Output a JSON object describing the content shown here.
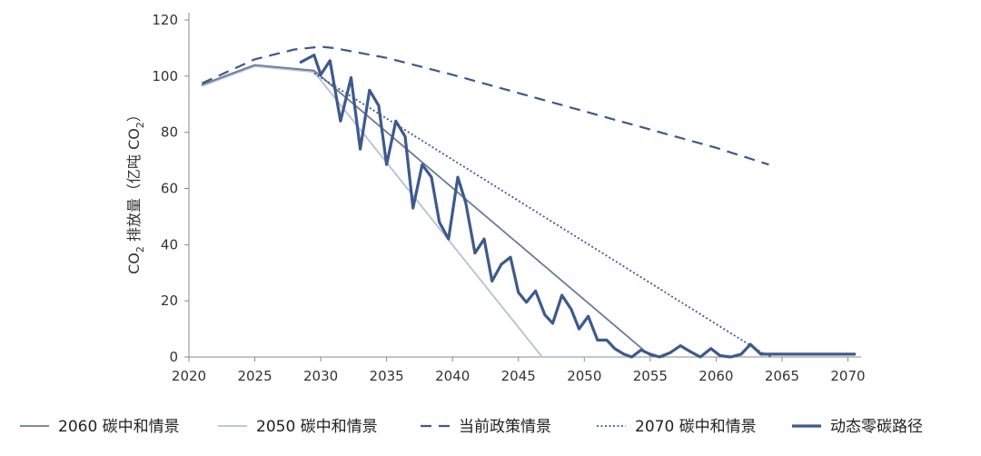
{
  "chart_data": {
    "type": "line",
    "ylabel": {
      "prefix": "CO",
      "prefix_sub": "2",
      "mid": " 排放量（亿吨 CO",
      "mid_sub": "2",
      "suffix": "）"
    },
    "xlim": [
      2020,
      2071
    ],
    "ylim": [
      0,
      120
    ],
    "xticks": [
      2020,
      2025,
      2030,
      2035,
      2040,
      2045,
      2050,
      2055,
      2060,
      2065,
      2070
    ],
    "yticks": [
      0,
      20,
      40,
      60,
      80,
      100,
      120
    ],
    "grid": false,
    "legend_position": "bottom",
    "series": [
      {
        "name": "2060 碳中和情景",
        "color": "#6b7a99",
        "style": "solid",
        "x": [
          2021,
          2025,
          2029.5,
          2055,
          2056
        ],
        "y": [
          97,
          104,
          102,
          0.5,
          0
        ]
      },
      {
        "name": "2050 碳中和情景",
        "color": "#b8bfd3",
        "style": "solid",
        "x": [
          2021,
          2025,
          2029.5,
          2046.8,
          2055
        ],
        "y": [
          96.5,
          103.5,
          101.5,
          0,
          0
        ]
      },
      {
        "name": "当前政策情景",
        "color": "#3d5a8c",
        "style": "dashed",
        "x": [
          2021,
          2025,
          2028,
          2030,
          2031,
          2035,
          2040,
          2045,
          2050,
          2055,
          2060,
          2064
        ],
        "y": [
          97.5,
          106,
          109.5,
          110.5,
          110,
          106.5,
          100.5,
          94,
          87.5,
          81,
          74.5,
          68.5
        ]
      },
      {
        "name": "2070 碳中和情景",
        "color": "#3d5a8c",
        "style": "dotted",
        "x": [
          2029.5,
          2063.5,
          2064.2
        ],
        "y": [
          101,
          1.5,
          0
        ]
      },
      {
        "name": "动态零碳路径",
        "color": "#3d5a8c",
        "style": "solid-thick",
        "x": [
          2028.5,
          2029.5,
          2030,
          2030.7,
          2031.5,
          2032.3,
          2033,
          2033.7,
          2034.4,
          2035,
          2035.7,
          2036.4,
          2037,
          2037.7,
          2038.4,
          2039,
          2039.7,
          2040.4,
          2041,
          2041.7,
          2042.4,
          2043,
          2043.7,
          2044.4,
          2045,
          2045.6,
          2046.3,
          2047,
          2047.6,
          2048.3,
          2049,
          2049.6,
          2050.3,
          2051,
          2051.7,
          2052.3,
          2053,
          2053.6,
          2054.3,
          2055,
          2055.7,
          2056.5,
          2057.3,
          2058,
          2058.8,
          2059.6,
          2060.3,
          2061.1,
          2061.9,
          2062.6,
          2063.4,
          2064.2,
          2065,
          2065.7,
          2066.5,
          2067.5,
          2068.5,
          2069.5,
          2070.5
        ],
        "y": [
          105,
          107.5,
          100.5,
          105.5,
          84,
          99.5,
          74,
          95,
          89.5,
          68.5,
          84,
          78.5,
          53,
          68.5,
          64,
          48,
          42,
          64,
          55,
          37,
          42,
          27,
          33,
          35.5,
          23,
          19.5,
          23.5,
          15,
          12,
          22,
          17,
          10,
          14.5,
          6,
          6,
          3,
          1,
          0,
          2.5,
          1,
          0,
          1.5,
          4,
          2,
          0,
          3,
          0.5,
          0,
          1,
          4.5,
          1,
          1,
          1,
          1,
          1,
          1,
          1,
          1,
          1
        ]
      }
    ]
  }
}
